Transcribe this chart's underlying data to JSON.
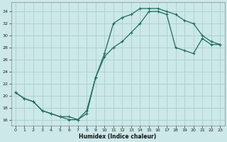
{
  "xlabel": "Humidex (Indice chaleur)",
  "bg_color": "#cce8e8",
  "line_color": "#1e6b5e",
  "grid_color": "#aad0d0",
  "xlim": [
    -0.5,
    23.5
  ],
  "ylim": [
    15.0,
    35.5
  ],
  "xticks": [
    0,
    1,
    2,
    3,
    4,
    5,
    6,
    7,
    8,
    9,
    10,
    11,
    12,
    13,
    14,
    15,
    16,
    17,
    18,
    19,
    20,
    21,
    22,
    23
  ],
  "yticks": [
    16,
    18,
    20,
    22,
    24,
    26,
    28,
    30,
    32,
    34
  ],
  "line1_x": [
    0,
    1,
    2,
    3,
    4,
    5,
    6,
    7,
    8,
    9,
    10,
    11,
    12,
    13,
    14,
    15,
    16,
    17,
    18,
    19,
    20,
    21,
    22,
    23
  ],
  "line1_y": [
    20.5,
    19.5,
    19.0,
    17.5,
    17.0,
    16.5,
    16.0,
    16.0,
    17.0,
    23.0,
    27.0,
    32.0,
    33.0,
    33.5,
    34.5,
    34.5,
    34.5,
    34.0,
    33.5,
    32.5,
    32.0,
    30.0,
    29.0,
    28.5
  ],
  "line2_x": [
    0,
    1,
    2,
    3,
    4,
    5,
    6,
    7,
    8,
    9,
    10,
    11,
    12,
    13,
    14,
    15,
    16,
    17,
    18,
    19,
    20,
    21,
    22,
    23
  ],
  "line2_y": [
    20.5,
    19.5,
    19.0,
    17.5,
    17.0,
    16.5,
    16.5,
    16.0,
    17.5,
    23.0,
    26.5,
    28.0,
    29.0,
    30.5,
    32.0,
    34.0,
    34.0,
    33.5,
    28.0,
    27.5,
    27.0,
    29.5,
    28.5,
    28.5
  ]
}
